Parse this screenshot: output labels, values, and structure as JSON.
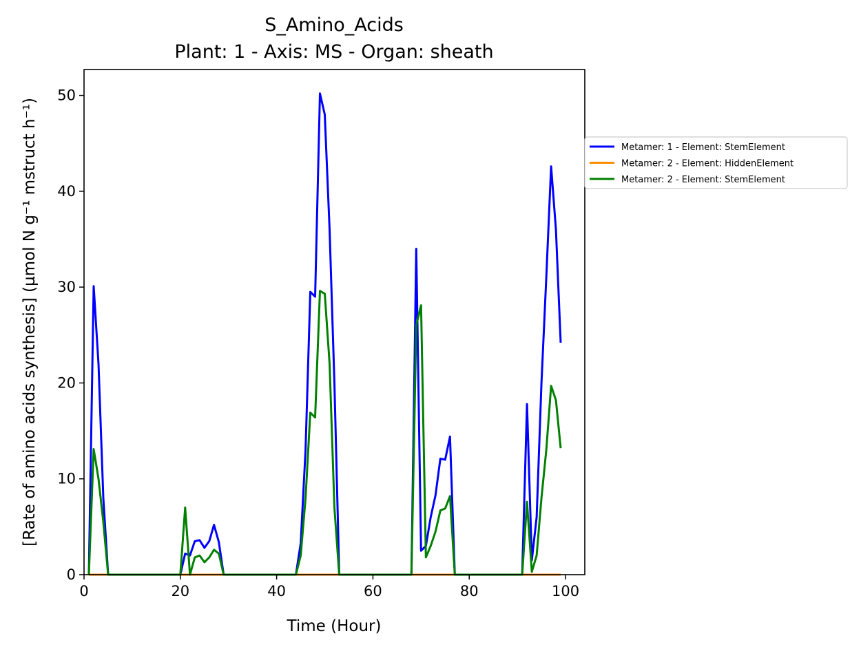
{
  "chart_data": {
    "type": "line",
    "title": "S_Amino_Acids",
    "subtitle": "Plant: 1 - Axis: MS - Organ: sheath",
    "xlabel": "Time (Hour)",
    "ylabel": "[Rate of amino acids synthesis] (µmol N g⁻¹ mstruct h⁻¹)",
    "xlim": [
      0,
      104
    ],
    "ylim": [
      0,
      52.7
    ],
    "xticks": [
      0,
      20,
      40,
      60,
      80,
      100
    ],
    "yticks": [
      0,
      10,
      20,
      30,
      40,
      50
    ],
    "xtick_labels": [
      "0",
      "20",
      "40",
      "60",
      "80",
      "100"
    ],
    "ytick_labels": [
      "0",
      "10",
      "20",
      "30",
      "40",
      "50"
    ],
    "grid": false,
    "legend_position": "right, outside plot",
    "series": [
      {
        "name": "Metamer: 1 - Element: StemElement",
        "color": "#0000ff",
        "x": [
          1,
          2,
          3,
          4,
          5,
          20,
          21,
          22,
          23,
          24,
          25,
          26,
          27,
          28,
          29,
          44,
          45,
          46,
          47,
          48,
          49,
          50,
          51,
          52,
          53,
          68,
          69,
          70,
          71,
          72,
          73,
          74,
          75,
          76,
          77,
          91,
          92,
          93,
          94,
          95,
          96,
          97,
          98,
          99
        ],
        "y": [
          0,
          30.1,
          22,
          8,
          0,
          0,
          2.2,
          2,
          3.5,
          3.6,
          2.8,
          3.5,
          5.2,
          3.4,
          0,
          0,
          3.3,
          13,
          29.5,
          29,
          50.2,
          48,
          36,
          20,
          0,
          0,
          34,
          2.5,
          3,
          6,
          8.3,
          12.1,
          12,
          14.4,
          0,
          0,
          17.8,
          1.5,
          6,
          20,
          31,
          42.6,
          36,
          24.2
        ]
      },
      {
        "name": "Metamer: 2 - Element: HiddenElement",
        "color": "#ff8c00",
        "x": [
          1,
          99
        ],
        "y": [
          0,
          0
        ]
      },
      {
        "name": "Metamer: 2 - Element: StemElement",
        "color": "#008000",
        "x": [
          1,
          2,
          3,
          4,
          5,
          20,
          21,
          22,
          23,
          24,
          25,
          26,
          27,
          28,
          29,
          44,
          45,
          46,
          47,
          48,
          49,
          50,
          51,
          52,
          53,
          68,
          69,
          70,
          71,
          72,
          73,
          74,
          75,
          76,
          77,
          91,
          92,
          93,
          94,
          95,
          96,
          97,
          98,
          99
        ],
        "y": [
          0,
          13.1,
          10,
          5.5,
          0,
          0,
          7,
          0,
          1.8,
          2,
          1.3,
          1.8,
          2.6,
          2.2,
          0,
          0,
          2,
          8,
          16.9,
          16.4,
          29.6,
          29.3,
          22,
          7,
          0,
          0,
          26,
          28.1,
          1.8,
          3,
          4.5,
          6.7,
          6.9,
          8.2,
          0,
          0,
          7.6,
          0.3,
          2,
          8,
          13,
          19.7,
          18.2,
          13.2
        ]
      }
    ]
  }
}
